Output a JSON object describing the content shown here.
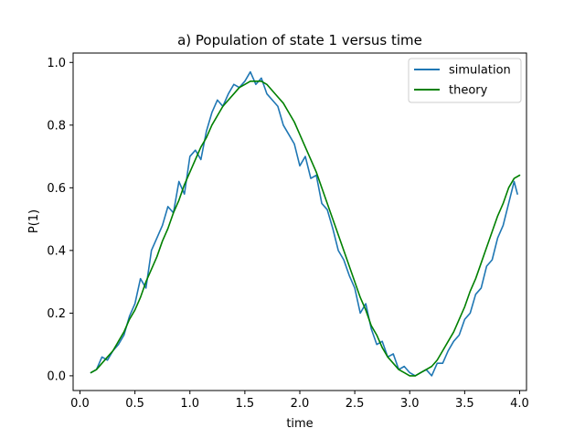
{
  "chart_data": {
    "type": "line",
    "title": "a) Population of state 1 versus time",
    "xlabel": "time",
    "ylabel": "P(1)",
    "xlim": [
      -0.0625,
      4.0625
    ],
    "ylim": [
      -0.047,
      1.03
    ],
    "xticks": [
      0.0,
      0.5,
      1.0,
      1.5,
      2.0,
      2.5,
      3.0,
      3.5,
      4.0
    ],
    "xtick_labels": [
      "0.0",
      "0.5",
      "1.0",
      "1.5",
      "2.0",
      "2.5",
      "3.0",
      "3.5",
      "4.0"
    ],
    "yticks": [
      0.0,
      0.2,
      0.4,
      0.6,
      0.8,
      1.0
    ],
    "ytick_labels": [
      "0.0",
      "0.2",
      "0.4",
      "0.6",
      "0.8",
      "1.0"
    ],
    "grid": false,
    "legend_position": "top-right",
    "series": [
      {
        "name": "simulation",
        "color": "#1f77b4",
        "x": [
          0.1,
          0.15,
          0.2,
          0.25,
          0.3,
          0.35,
          0.4,
          0.45,
          0.5,
          0.55,
          0.6,
          0.65,
          0.7,
          0.75,
          0.8,
          0.85,
          0.9,
          0.95,
          1.0,
          1.05,
          1.1,
          1.15,
          1.2,
          1.25,
          1.3,
          1.35,
          1.4,
          1.45,
          1.5,
          1.55,
          1.6,
          1.65,
          1.7,
          1.75,
          1.8,
          1.85,
          1.9,
          1.95,
          2.0,
          2.05,
          2.1,
          2.15,
          2.2,
          2.25,
          2.3,
          2.35,
          2.4,
          2.45,
          2.5,
          2.55,
          2.6,
          2.65,
          2.7,
          2.75,
          2.8,
          2.85,
          2.9,
          2.95,
          3.0,
          3.05,
          3.1,
          3.15,
          3.2,
          3.25,
          3.3,
          3.35,
          3.4,
          3.45,
          3.5,
          3.55,
          3.6,
          3.65,
          3.7,
          3.75,
          3.8,
          3.85,
          3.9,
          3.95,
          3.98
        ],
        "y": [
          0.01,
          0.02,
          0.06,
          0.05,
          0.08,
          0.1,
          0.13,
          0.19,
          0.23,
          0.31,
          0.28,
          0.4,
          0.44,
          0.48,
          0.54,
          0.52,
          0.62,
          0.58,
          0.7,
          0.72,
          0.69,
          0.78,
          0.84,
          0.88,
          0.86,
          0.9,
          0.93,
          0.92,
          0.94,
          0.97,
          0.93,
          0.95,
          0.9,
          0.88,
          0.86,
          0.8,
          0.77,
          0.74,
          0.67,
          0.7,
          0.63,
          0.64,
          0.55,
          0.53,
          0.47,
          0.4,
          0.37,
          0.32,
          0.28,
          0.2,
          0.23,
          0.15,
          0.1,
          0.11,
          0.06,
          0.07,
          0.02,
          0.03,
          0.01,
          0.0,
          0.01,
          0.02,
          0.0,
          0.04,
          0.04,
          0.08,
          0.11,
          0.13,
          0.18,
          0.2,
          0.26,
          0.28,
          0.35,
          0.37,
          0.44,
          0.48,
          0.55,
          0.62,
          0.58
        ]
      },
      {
        "name": "theory",
        "color": "#008000",
        "x": [
          0.1,
          0.15,
          0.2,
          0.25,
          0.3,
          0.35,
          0.4,
          0.45,
          0.5,
          0.55,
          0.6,
          0.65,
          0.7,
          0.75,
          0.8,
          0.85,
          0.9,
          0.95,
          1.0,
          1.05,
          1.1,
          1.15,
          1.2,
          1.25,
          1.3,
          1.35,
          1.4,
          1.45,
          1.5,
          1.55,
          1.6,
          1.65,
          1.7,
          1.75,
          1.8,
          1.85,
          1.9,
          1.95,
          2.0,
          2.05,
          2.1,
          2.15,
          2.2,
          2.25,
          2.3,
          2.35,
          2.4,
          2.45,
          2.5,
          2.55,
          2.6,
          2.65,
          2.7,
          2.75,
          2.8,
          2.85,
          2.9,
          2.95,
          3.0,
          3.05,
          3.1,
          3.15,
          3.2,
          3.25,
          3.3,
          3.35,
          3.4,
          3.45,
          3.5,
          3.55,
          3.6,
          3.65,
          3.7,
          3.75,
          3.8,
          3.85,
          3.9,
          3.95,
          4.0
        ],
        "y": [
          0.01,
          0.02,
          0.04,
          0.06,
          0.08,
          0.11,
          0.14,
          0.18,
          0.21,
          0.25,
          0.3,
          0.34,
          0.38,
          0.43,
          0.47,
          0.52,
          0.56,
          0.61,
          0.65,
          0.69,
          0.73,
          0.76,
          0.8,
          0.83,
          0.86,
          0.88,
          0.9,
          0.92,
          0.93,
          0.94,
          0.94,
          0.94,
          0.93,
          0.91,
          0.89,
          0.87,
          0.84,
          0.81,
          0.77,
          0.73,
          0.69,
          0.65,
          0.6,
          0.55,
          0.5,
          0.45,
          0.4,
          0.35,
          0.3,
          0.25,
          0.21,
          0.16,
          0.13,
          0.09,
          0.06,
          0.04,
          0.02,
          0.01,
          0.0,
          0.0,
          0.01,
          0.02,
          0.03,
          0.05,
          0.08,
          0.11,
          0.14,
          0.18,
          0.22,
          0.27,
          0.31,
          0.36,
          0.41,
          0.46,
          0.51,
          0.55,
          0.6,
          0.63,
          0.64
        ]
      }
    ]
  }
}
